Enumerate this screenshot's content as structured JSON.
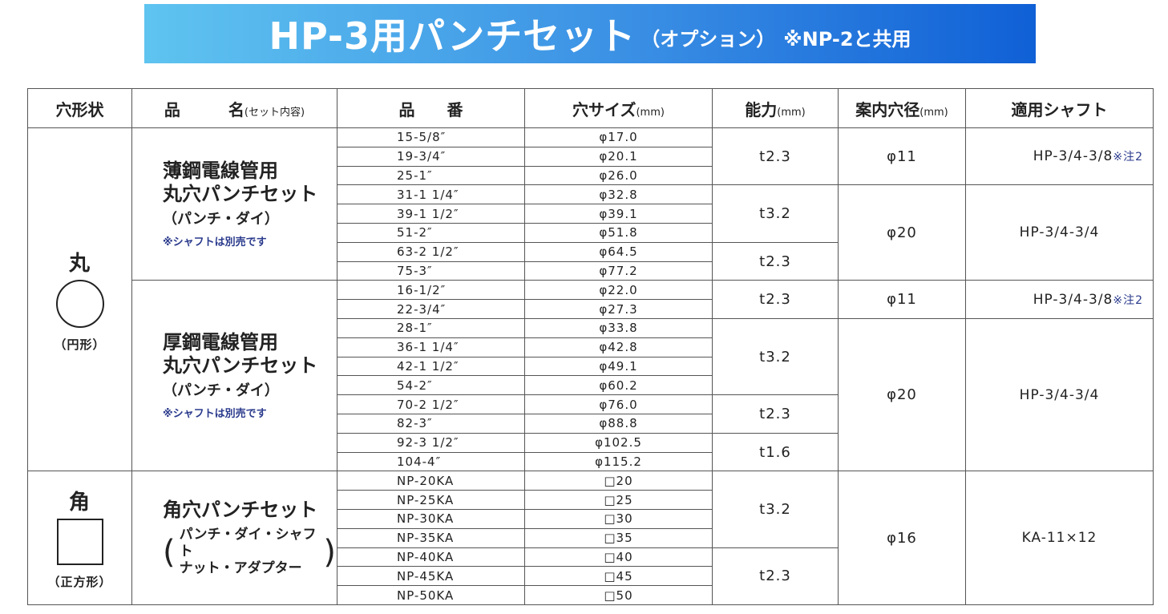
{
  "banner": {
    "title": "HP-3用パンチセット",
    "option": "（オプション）",
    "note": "※NP-2と共用"
  },
  "headers": {
    "shape": "穴形状",
    "name": "品　　　名",
    "name_sub": "(セット内容)",
    "part_no": "品　　番",
    "hole_size": "穴サイズ",
    "hole_size_unit": "(mm)",
    "capacity": "能力",
    "capacity_unit": "(mm)",
    "guide": "案内穴径",
    "guide_unit": "(mm)",
    "shaft": "適用シャフト"
  },
  "shapes": {
    "round": {
      "char": "丸",
      "desc": "（円形）"
    },
    "square": {
      "char": "角",
      "desc": "（正方形）"
    }
  },
  "products": {
    "thin": {
      "line1": "薄鋼電線管用",
      "line2": "丸穴パンチセット",
      "sub": "（パンチ・ダイ）",
      "note": "※シャフトは別売です"
    },
    "thick": {
      "line1": "厚鋼電線管用",
      "line2": "丸穴パンチセット",
      "sub": "（パンチ・ダイ）",
      "note": "※シャフトは別売です"
    },
    "square": {
      "line1": "角穴パンチセット",
      "paren_open": "(",
      "inner1": "パンチ・ダイ・シャフト",
      "inner2": "ナット・アダプター",
      "paren_close": ")"
    }
  },
  "rows": [
    {
      "part": "15-5/8″",
      "size": "φ17.0"
    },
    {
      "part": "19-3/4″",
      "size": "φ20.1"
    },
    {
      "part": "25-1″",
      "size": "φ26.0"
    },
    {
      "part": "31-1 1/4″",
      "size": "φ32.8"
    },
    {
      "part": "39-1 1/2″",
      "size": "φ39.1"
    },
    {
      "part": "51-2″",
      "size": "φ51.8"
    },
    {
      "part": "63-2 1/2″",
      "size": "φ64.5"
    },
    {
      "part": "75-3″",
      "size": "φ77.2"
    },
    {
      "part": "16-1/2″",
      "size": "φ22.0"
    },
    {
      "part": "22-3/4″",
      "size": "φ27.3"
    },
    {
      "part": "28-1″",
      "size": "φ33.8"
    },
    {
      "part": "36-1 1/4″",
      "size": "φ42.8"
    },
    {
      "part": "42-1 1/2″",
      "size": "φ49.1"
    },
    {
      "part": "54-2″",
      "size": "φ60.2"
    },
    {
      "part": "70-2 1/2″",
      "size": "φ76.0"
    },
    {
      "part": "82-3″",
      "size": "φ88.8"
    },
    {
      "part": "92-3 1/2″",
      "size": "φ102.5"
    },
    {
      "part": "104-4″",
      "size": "φ115.2"
    },
    {
      "part": "NP-20KA",
      "size": "□20"
    },
    {
      "part": "NP-25KA",
      "size": "□25"
    },
    {
      "part": "NP-30KA",
      "size": "□30"
    },
    {
      "part": "NP-35KA",
      "size": "□35"
    },
    {
      "part": "NP-40KA",
      "size": "□40"
    },
    {
      "part": "NP-45KA",
      "size": "□45"
    },
    {
      "part": "NP-50KA",
      "size": "□50"
    }
  ],
  "capacity": [
    "t2.3",
    "t3.2",
    "t2.3",
    "t2.3",
    "t3.2",
    "t2.3",
    "t1.6",
    "t3.2",
    "t2.3"
  ],
  "guide": [
    "φ11",
    "φ20",
    "φ11",
    "φ20",
    "φ16"
  ],
  "shaft": [
    {
      "text": "HP-3/4-3/8",
      "note": "※注2"
    },
    {
      "text": "HP-3/4-3/4",
      "note": ""
    },
    {
      "text": "HP-3/4-3/8",
      "note": "※注2"
    },
    {
      "text": "HP-3/4-3/4",
      "note": ""
    },
    {
      "text": "KA-11×12",
      "note": ""
    }
  ]
}
